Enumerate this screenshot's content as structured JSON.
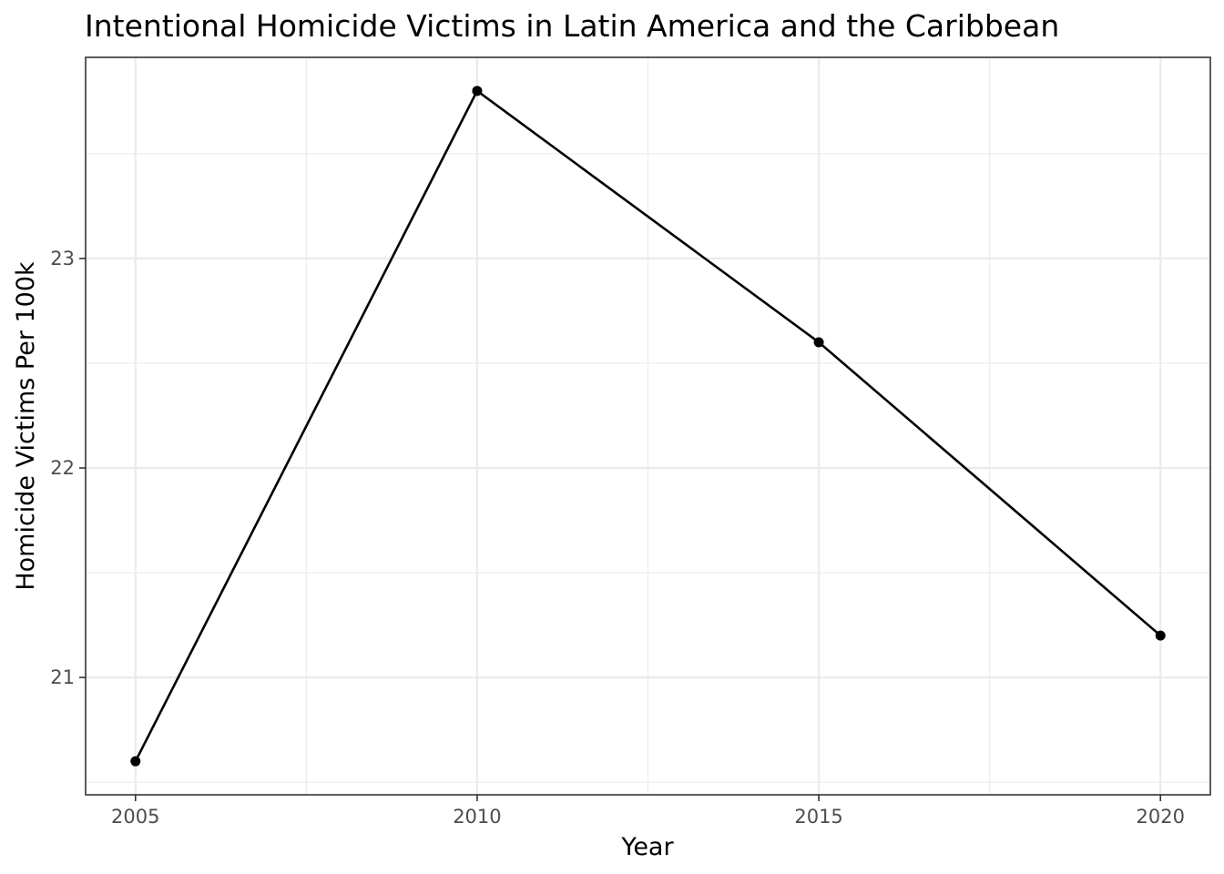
{
  "chart_data": {
    "type": "line",
    "title": "Intentional Homicide Victims in Latin America and the Caribbean",
    "xlabel": "Year",
    "ylabel": "Homicide Victims Per 100k",
    "x": [
      2005,
      2010,
      2015,
      2020
    ],
    "y": [
      20.6,
      23.8,
      22.6,
      21.2
    ],
    "xlim": [
      2004.27,
      2020.73
    ],
    "ylim": [
      20.44,
      23.96
    ],
    "xticks": [
      2005,
      2010,
      2015,
      2020
    ],
    "xtick_labels": [
      "2005",
      "2010",
      "2015",
      "2020"
    ],
    "yticks": [
      21,
      22,
      23
    ],
    "ytick_labels": [
      "21",
      "22",
      "23"
    ],
    "x_minor": [
      2007.5,
      2012.5,
      2017.5
    ],
    "y_minor": [
      20.5,
      21.5,
      22.5,
      23.5
    ],
    "grid": true,
    "legend": "none",
    "colors": {
      "line": "#000000",
      "point": "#000000",
      "grid": "#ebebeb",
      "panel_border": "#333333",
      "tick_label": "#4d4d4d"
    }
  }
}
